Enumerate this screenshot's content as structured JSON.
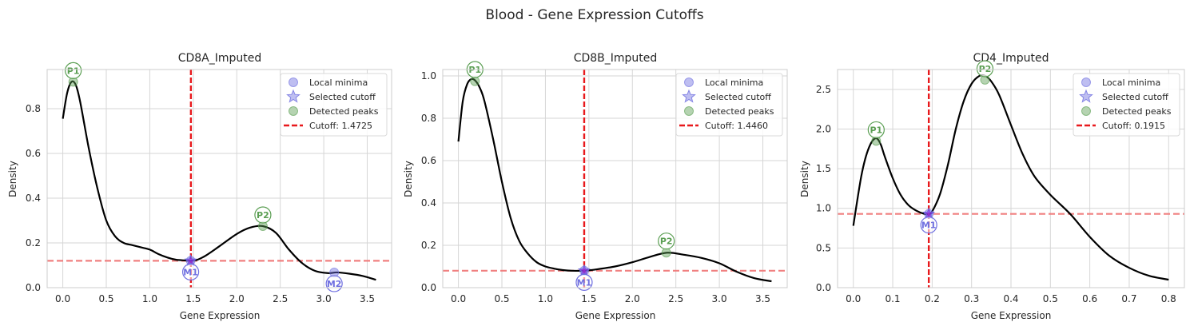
{
  "figure": {
    "suptitle": "Blood - Gene Expression Cutoffs"
  },
  "chart_data": [
    {
      "type": "line",
      "title": "CD8A_Imputed",
      "xlabel": "Gene Expression",
      "ylabel": "Density",
      "xlim": [
        -0.18,
        3.78
      ],
      "ylim": [
        0,
        0.975
      ],
      "xticks": [
        0.0,
        0.5,
        1.0,
        1.5,
        2.0,
        2.5,
        3.0,
        3.5
      ],
      "xtick_labels": [
        "0.0",
        "0.5",
        "1.0",
        "1.5",
        "2.0",
        "2.5",
        "3.0",
        "3.5"
      ],
      "yticks": [
        0.0,
        0.2,
        0.4,
        0.6,
        0.8
      ],
      "ytick_labels": [
        "0.0",
        "0.2",
        "0.4",
        "0.6",
        "0.8"
      ],
      "grid": true,
      "legend_position": "top-right",
      "legend": [
        "Local minima",
        "Selected cutoff",
        "Detected peaks",
        "Cutoff: 1.4725"
      ],
      "curve": {
        "x": [
          0.0,
          0.05,
          0.1,
          0.15,
          0.2,
          0.3,
          0.4,
          0.5,
          0.6,
          0.7,
          0.8,
          0.9,
          1.0,
          1.1,
          1.2,
          1.3,
          1.4,
          1.47,
          1.55,
          1.65,
          1.8,
          2.0,
          2.15,
          2.3,
          2.45,
          2.6,
          2.75,
          2.9,
          3.05,
          3.15,
          3.3,
          3.45,
          3.6
        ],
        "y": [
          0.755,
          0.87,
          0.92,
          0.905,
          0.83,
          0.62,
          0.44,
          0.3,
          0.23,
          0.2,
          0.19,
          0.18,
          0.17,
          0.15,
          0.135,
          0.125,
          0.122,
          0.12,
          0.125,
          0.145,
          0.185,
          0.24,
          0.268,
          0.275,
          0.245,
          0.17,
          0.11,
          0.075,
          0.065,
          0.068,
          0.062,
          0.052,
          0.035
        ]
      },
      "cutoff": 1.4725,
      "cutoff_label": "Cutoff: 1.4725",
      "hline": 0.12,
      "peaks": [
        {
          "label": "P1",
          "x": 0.12,
          "y": 0.92
        },
        {
          "label": "P2",
          "x": 2.3,
          "y": 0.275
        }
      ],
      "minima": [
        {
          "label": "M1",
          "x": 1.47,
          "y": 0.12
        },
        {
          "label": "M2",
          "x": 3.12,
          "y": 0.068
        }
      ],
      "selected_cutoff": {
        "x": 1.47,
        "y": 0.12
      },
      "annotation_offset": 0.05
    },
    {
      "type": "line",
      "title": "CD8B_Imputed",
      "xlabel": "Gene Expression",
      "ylabel": "Density",
      "xlim": [
        -0.18,
        3.78
      ],
      "ylim": [
        0,
        1.03
      ],
      "xticks": [
        0.0,
        0.5,
        1.0,
        1.5,
        2.0,
        2.5,
        3.0,
        3.5
      ],
      "xtick_labels": [
        "0.0",
        "0.5",
        "1.0",
        "1.5",
        "2.0",
        "2.5",
        "3.0",
        "3.5"
      ],
      "yticks": [
        0.0,
        0.2,
        0.4,
        0.6,
        0.8,
        1.0
      ],
      "ytick_labels": [
        "0.0",
        "0.2",
        "0.4",
        "0.6",
        "0.8",
        "1.0"
      ],
      "grid": true,
      "legend_position": "top-right",
      "legend": [
        "Local minima",
        "Selected cutoff",
        "Detected peaks",
        "Cutoff: 1.4460"
      ],
      "curve": {
        "x": [
          0.0,
          0.05,
          0.1,
          0.15,
          0.2,
          0.25,
          0.3,
          0.4,
          0.5,
          0.6,
          0.7,
          0.8,
          0.9,
          1.0,
          1.1,
          1.2,
          1.3,
          1.446,
          1.6,
          1.8,
          2.0,
          2.2,
          2.4,
          2.6,
          2.8,
          3.0,
          3.2,
          3.4,
          3.6
        ],
        "y": [
          0.69,
          0.88,
          0.96,
          0.985,
          0.975,
          0.94,
          0.88,
          0.7,
          0.5,
          0.33,
          0.22,
          0.16,
          0.12,
          0.1,
          0.09,
          0.083,
          0.08,
          0.08,
          0.087,
          0.1,
          0.12,
          0.145,
          0.165,
          0.155,
          0.14,
          0.115,
          0.075,
          0.045,
          0.03
        ]
      },
      "cutoff": 1.446,
      "cutoff_label": "Cutoff: 1.4460",
      "hline": 0.08,
      "peaks": [
        {
          "label": "P1",
          "x": 0.19,
          "y": 0.975
        },
        {
          "label": "P2",
          "x": 2.39,
          "y": 0.165
        }
      ],
      "minima": [
        {
          "label": "M1",
          "x": 1.446,
          "y": 0.08
        }
      ],
      "selected_cutoff": {
        "x": 1.446,
        "y": 0.08
      },
      "annotation_offset": 0.055
    },
    {
      "type": "line",
      "title": "CD4_Imputed",
      "xlabel": "Gene Expression",
      "ylabel": "Density",
      "xlim": [
        -0.04,
        0.84
      ],
      "ylim": [
        0,
        2.75
      ],
      "xticks": [
        0.0,
        0.1,
        0.2,
        0.3,
        0.4,
        0.5,
        0.6,
        0.7,
        0.8
      ],
      "xtick_labels": [
        "0.0",
        "0.1",
        "0.2",
        "0.3",
        "0.4",
        "0.5",
        "0.6",
        "0.7",
        "0.8"
      ],
      "yticks": [
        0.0,
        0.5,
        1.0,
        1.5,
        2.0,
        2.5
      ],
      "ytick_labels": [
        "0.0",
        "0.5",
        "1.0",
        "1.5",
        "2.0",
        "2.5"
      ],
      "grid": true,
      "legend_position": "top-right",
      "legend": [
        "Local minima",
        "Selected cutoff",
        "Detected peaks",
        "Cutoff: 0.1915"
      ],
      "curve": {
        "x": [
          0.0,
          0.01,
          0.02,
          0.03,
          0.04,
          0.05,
          0.06,
          0.07,
          0.08,
          0.1,
          0.12,
          0.14,
          0.16,
          0.18,
          0.1915,
          0.2,
          0.22,
          0.24,
          0.26,
          0.28,
          0.3,
          0.32,
          0.335,
          0.35,
          0.37,
          0.4,
          0.43,
          0.46,
          0.5,
          0.55,
          0.6,
          0.65,
          0.7,
          0.75,
          0.8
        ],
        "y": [
          0.78,
          1.1,
          1.4,
          1.62,
          1.77,
          1.86,
          1.88,
          1.8,
          1.65,
          1.38,
          1.17,
          1.04,
          0.97,
          0.93,
          0.93,
          0.96,
          1.18,
          1.55,
          2.0,
          2.35,
          2.57,
          2.67,
          2.67,
          2.6,
          2.43,
          2.05,
          1.68,
          1.4,
          1.17,
          0.93,
          0.64,
          0.4,
          0.25,
          0.15,
          0.1
        ]
      },
      "cutoff": 0.1915,
      "cutoff_label": "Cutoff: 0.1915",
      "hline": 0.93,
      "peaks": [
        {
          "label": "P1",
          "x": 0.058,
          "y": 1.85
        },
        {
          "label": "P2",
          "x": 0.334,
          "y": 2.62
        }
      ],
      "minima": [
        {
          "label": "M1",
          "x": 0.1915,
          "y": 0.93
        }
      ],
      "selected_cutoff": {
        "x": 0.1915,
        "y": 0.93
      },
      "annotation_offset": 0.14
    }
  ],
  "colors": {
    "curve": "#000000",
    "cutoff": "#e8191c",
    "hline": "#f08080",
    "minima": "#6f6fe0",
    "peaks": "#5a9e52",
    "grid": "#d6d6d6",
    "spine": "#cccccc"
  }
}
